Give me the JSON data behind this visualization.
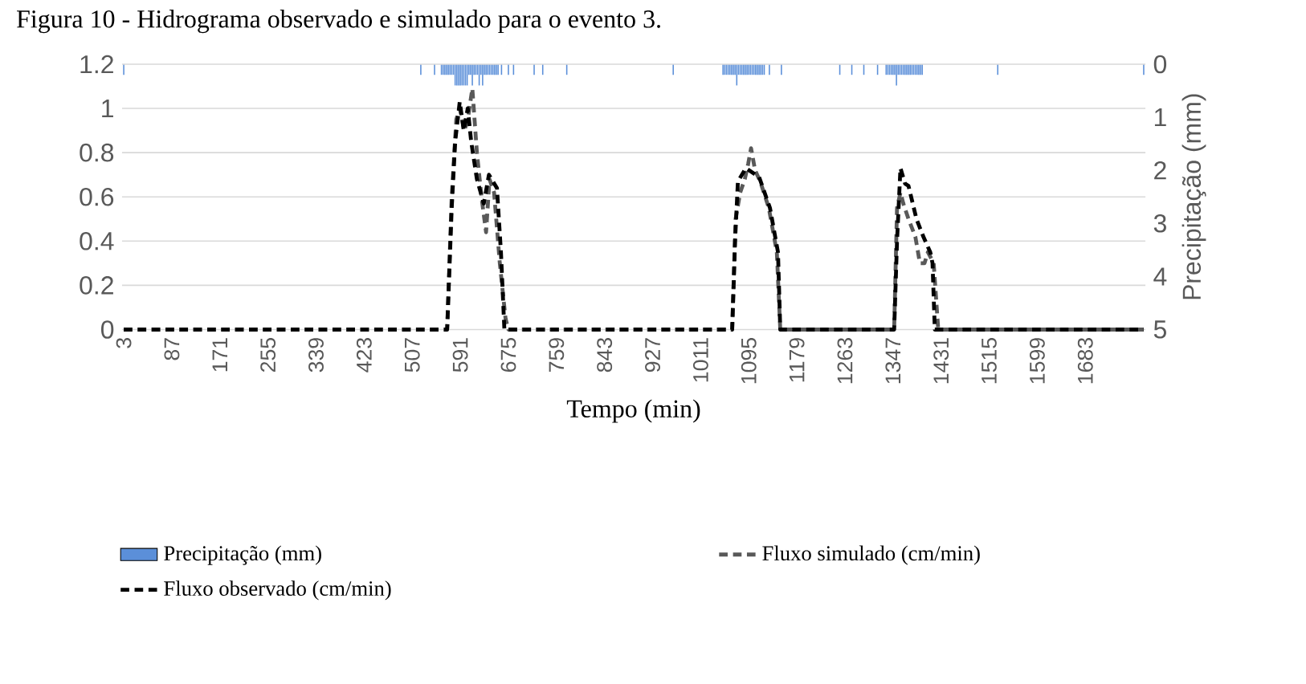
{
  "chart_data": {
    "type": "line",
    "title": "Figura 10 - Hidrograma observado e simulado para o evento 3.",
    "xlabel": "Tempo (min)",
    "y2label": "Precipitação (mm)",
    "xlim": [
      0,
      1788
    ],
    "xticks": [
      3,
      87,
      171,
      255,
      339,
      423,
      507,
      591,
      675,
      759,
      843,
      927,
      1011,
      1095,
      1179,
      1263,
      1347,
      1431,
      1515,
      1599,
      1683
    ],
    "ylim": [
      0,
      1.2
    ],
    "yticks": [
      0,
      0.2,
      0.4,
      0.6,
      0.8,
      1,
      1.2
    ],
    "y2lim": [
      5,
      0
    ],
    "y2ticks": [
      0,
      1,
      2,
      3,
      4,
      5
    ],
    "grid": "y",
    "legend": "bottom",
    "marker": "none",
    "series": [
      {
        "name": "Precipitação (mm)",
        "type": "bar",
        "axis": "y2",
        "color": "#5b8fd9",
        "x": [
          3,
          522,
          546,
          558,
          561,
          564,
          567,
          570,
          573,
          576,
          579,
          582,
          585,
          588,
          591,
          594,
          597,
          600,
          603,
          606,
          609,
          612,
          615,
          618,
          621,
          624,
          627,
          630,
          633,
          636,
          639,
          642,
          645,
          648,
          651,
          654,
          657,
          663,
          675,
          684,
          720,
          735,
          777,
          963,
          1050,
          1053,
          1056,
          1059,
          1062,
          1065,
          1068,
          1071,
          1074,
          1077,
          1080,
          1083,
          1086,
          1089,
          1092,
          1095,
          1098,
          1101,
          1104,
          1107,
          1110,
          1113,
          1116,
          1119,
          1122,
          1131,
          1152,
          1254,
          1275,
          1296,
          1320,
          1335,
          1338,
          1341,
          1344,
          1347,
          1350,
          1353,
          1356,
          1359,
          1362,
          1365,
          1368,
          1371,
          1374,
          1377,
          1380,
          1383,
          1386,
          1389,
          1392,
          1395,
          1398,
          1530,
          1785
        ],
        "values": [
          0.2,
          0.2,
          0.2,
          0.2,
          0.2,
          0.2,
          0.2,
          0.2,
          0.2,
          0.2,
          0.2,
          0.4,
          0.4,
          0.4,
          0.4,
          0.4,
          0.4,
          0.4,
          0.4,
          0.2,
          0.2,
          0.4,
          0.2,
          0.2,
          0.2,
          0.4,
          0.2,
          0.4,
          0.2,
          0.2,
          0.2,
          0.2,
          0.2,
          0.2,
          0.2,
          0.2,
          0.2,
          0.2,
          0.2,
          0.2,
          0.2,
          0.2,
          0.2,
          0.2,
          0.2,
          0.2,
          0.2,
          0.2,
          0.2,
          0.2,
          0.2,
          0.2,
          0.4,
          0.2,
          0.2,
          0.2,
          0.2,
          0.2,
          0.2,
          0.2,
          0.2,
          0.2,
          0.2,
          0.2,
          0.2,
          0.2,
          0.2,
          0.2,
          0.2,
          0.2,
          0.2,
          0.2,
          0.2,
          0.2,
          0.2,
          0.2,
          0.2,
          0.2,
          0.2,
          0.2,
          0.2,
          0.4,
          0.2,
          0.2,
          0.2,
          0.2,
          0.2,
          0.2,
          0.2,
          0.2,
          0.2,
          0.2,
          0.2,
          0.2,
          0.2,
          0.2,
          0.2,
          0.2,
          0.2
        ]
      },
      {
        "name": "Fluxo simulado (cm/min)",
        "line_style": "dashed",
        "color": "#595959",
        "x": [
          3,
          568,
          576,
          584,
          590,
          598,
          604,
          612,
          620,
          628,
          636,
          642,
          650,
          660,
          670,
          675,
          1066,
          1072,
          1080,
          1088,
          1094,
          1099,
          1106,
          1115,
          1130,
          1144,
          1150,
          1349,
          1354,
          1360,
          1365,
          1374,
          1386,
          1394,
          1402,
          1408,
          1418,
          1426,
          1785
        ],
        "values": [
          0,
          0,
          0.6,
          0.95,
          1.0,
          0.9,
          0.95,
          1.09,
          0.8,
          0.6,
          0.44,
          0.68,
          0.62,
          0.3,
          0.05,
          0,
          0,
          0.5,
          0.62,
          0.68,
          0.75,
          0.82,
          0.72,
          0.67,
          0.55,
          0.35,
          0,
          0,
          0.55,
          0.62,
          0.57,
          0.5,
          0.42,
          0.3,
          0.3,
          0.35,
          0.3,
          0,
          0
        ]
      },
      {
        "name": "Fluxo observado (cm/min)",
        "line_style": "dashed",
        "color": "#000000",
        "x": [
          3,
          568,
          576,
          582,
          590,
          597,
          604,
          610,
          620,
          632,
          641,
          655,
          662,
          668,
          1066,
          1071,
          1076,
          1090,
          1113,
          1132,
          1146,
          1150,
          1349,
          1354,
          1360,
          1368,
          1374,
          1388,
          1400,
          1412,
          1416,
          1420,
          1785
        ],
        "values": [
          0,
          0,
          0.55,
          0.85,
          1.03,
          0.9,
          1.0,
          0.85,
          0.68,
          0.57,
          0.7,
          0.64,
          0.35,
          0,
          0,
          0.4,
          0.67,
          0.73,
          0.69,
          0.55,
          0.35,
          0,
          0,
          0.4,
          0.73,
          0.66,
          0.65,
          0.5,
          0.42,
          0.35,
          0.3,
          0,
          0
        ]
      }
    ]
  }
}
